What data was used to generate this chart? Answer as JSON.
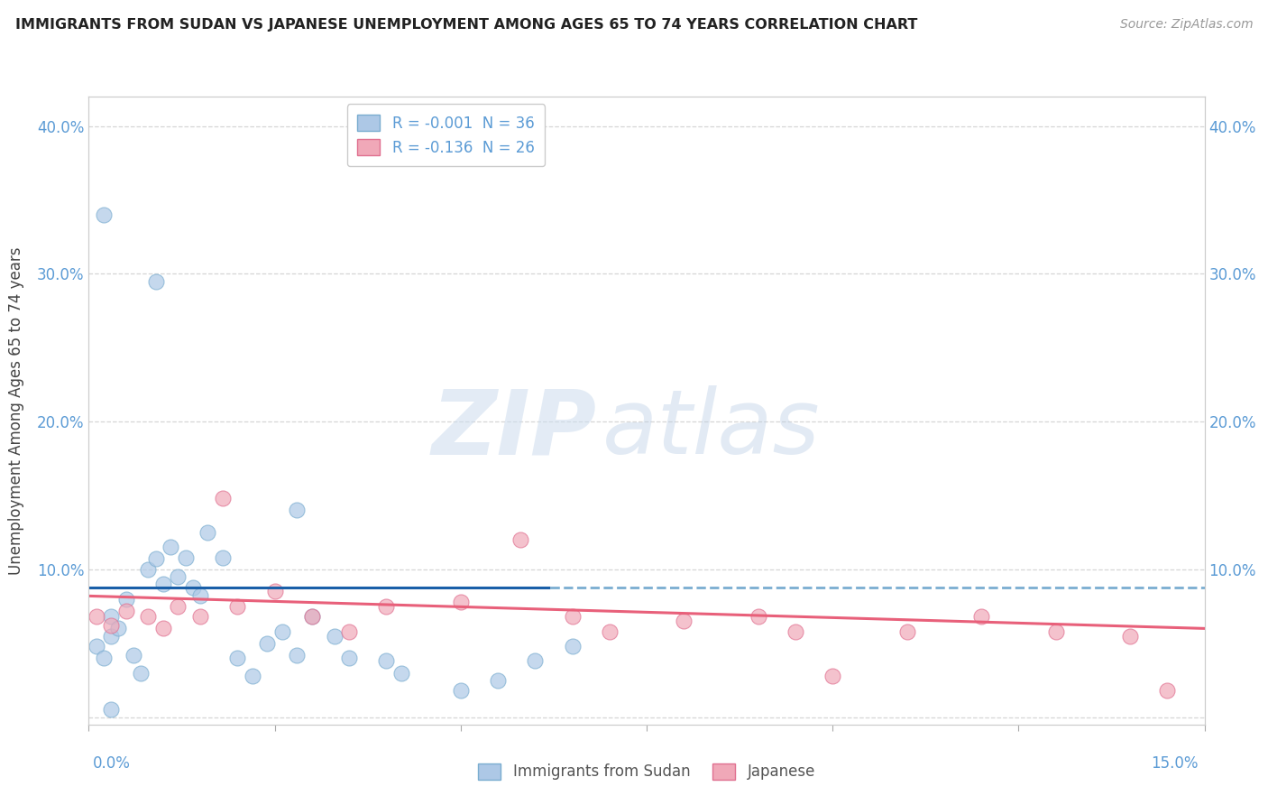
{
  "title": "IMMIGRANTS FROM SUDAN VS JAPANESE UNEMPLOYMENT AMONG AGES 65 TO 74 YEARS CORRELATION CHART",
  "source": "Source: ZipAtlas.com",
  "ylabel": "Unemployment Among Ages 65 to 74 years",
  "xlim": [
    0.0,
    0.15
  ],
  "ylim": [
    -0.005,
    0.42
  ],
  "yticks": [
    0.0,
    0.1,
    0.2,
    0.3,
    0.4
  ],
  "ytick_labels": [
    "",
    "10.0%",
    "20.0%",
    "30.0%",
    "40.0%"
  ],
  "legend1_R": "-0.001",
  "legend1_N": "36",
  "legend2_R": "-0.136",
  "legend2_N": "26",
  "legend1_label": "Immigrants from Sudan",
  "legend2_label": "Japanese",
  "sudan_color": "#adc8e6",
  "japanese_color": "#f0a8b8",
  "sudan_edge": "#7aadd0",
  "japanese_edge": "#e07090",
  "trend_sudan_solid_color": "#1a5fa8",
  "trend_sudan_dashed_color": "#7aadd0",
  "trend_japanese_color": "#e8607a",
  "watermark_zip_color": "#ccdcee",
  "watermark_atlas_color": "#b8cce4",
  "bg_color": "#ffffff",
  "grid_color": "#cccccc",
  "axis_label_color": "#5b9bd5",
  "title_color": "#222222",
  "source_color": "#999999",
  "ylabel_color": "#444444",
  "sudan_scatter_x": [
    0.001,
    0.002,
    0.003,
    0.003,
    0.004,
    0.005,
    0.006,
    0.007,
    0.008,
    0.009,
    0.01,
    0.011,
    0.012,
    0.013,
    0.014,
    0.015,
    0.016,
    0.018,
    0.02,
    0.022,
    0.024,
    0.026,
    0.028,
    0.03,
    0.033,
    0.035,
    0.04,
    0.042,
    0.05,
    0.055,
    0.06,
    0.065,
    0.009,
    0.028,
    0.002,
    0.003
  ],
  "sudan_scatter_y": [
    0.048,
    0.04,
    0.055,
    0.068,
    0.06,
    0.08,
    0.042,
    0.03,
    0.1,
    0.107,
    0.09,
    0.115,
    0.095,
    0.108,
    0.088,
    0.082,
    0.125,
    0.108,
    0.04,
    0.028,
    0.05,
    0.058,
    0.042,
    0.068,
    0.055,
    0.04,
    0.038,
    0.03,
    0.018,
    0.025,
    0.038,
    0.048,
    0.295,
    0.14,
    0.34,
    0.005
  ],
  "japanese_scatter_x": [
    0.001,
    0.003,
    0.005,
    0.008,
    0.01,
    0.012,
    0.015,
    0.018,
    0.02,
    0.025,
    0.03,
    0.035,
    0.04,
    0.05,
    0.058,
    0.065,
    0.07,
    0.08,
    0.09,
    0.095,
    0.1,
    0.11,
    0.12,
    0.13,
    0.14,
    0.145
  ],
  "japanese_scatter_y": [
    0.068,
    0.062,
    0.072,
    0.068,
    0.06,
    0.075,
    0.068,
    0.148,
    0.075,
    0.085,
    0.068,
    0.058,
    0.075,
    0.078,
    0.12,
    0.068,
    0.058,
    0.065,
    0.068,
    0.058,
    0.028,
    0.058,
    0.068,
    0.058,
    0.055,
    0.018
  ],
  "trend_sudan_x0": 0.0,
  "trend_sudan_x_break": 0.062,
  "trend_sudan_x1": 0.15,
  "trend_sudan_y": 0.088,
  "trend_japanese_y0": 0.082,
  "trend_japanese_y1": 0.06
}
